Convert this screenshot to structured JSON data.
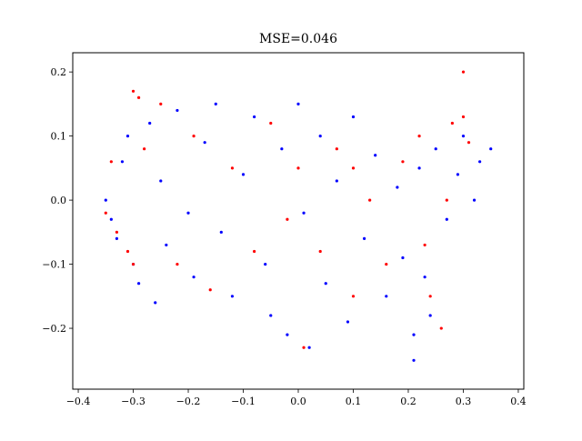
{
  "chart_data": {
    "type": "scatter",
    "title": "MSE=0.046",
    "xlabel": "",
    "ylabel": "",
    "xlim": [
      -0.41,
      0.41
    ],
    "ylim": [
      -0.295,
      0.23
    ],
    "xticks": [
      -0.4,
      -0.3,
      -0.2,
      -0.1,
      0.0,
      0.1,
      0.2,
      0.3,
      0.4
    ],
    "xtick_labels": [
      "−0.4",
      "−0.3",
      "−0.2",
      "−0.1",
      "0.0",
      "0.1",
      "0.2",
      "0.3",
      "0.4"
    ],
    "yticks": [
      -0.2,
      -0.1,
      0.0,
      0.1,
      0.2
    ],
    "ytick_labels": [
      "−0.2",
      "−0.1",
      "0.0",
      "0.1",
      "0.2"
    ],
    "grid": false,
    "legend": "none",
    "colors": {
      "base": "#0000ff",
      "highlight": "#ff0000"
    },
    "series": [
      {
        "color": "#0000ff",
        "points": [
          [
            -0.35,
            0.0
          ],
          [
            -0.34,
            -0.03
          ],
          [
            -0.33,
            -0.06
          ],
          [
            -0.32,
            0.06
          ],
          [
            -0.31,
            0.1
          ],
          [
            -0.3,
            -0.1
          ],
          [
            -0.29,
            -0.13
          ],
          [
            -0.27,
            0.12
          ],
          [
            -0.26,
            -0.16
          ],
          [
            -0.25,
            0.03
          ],
          [
            -0.24,
            -0.07
          ],
          [
            -0.22,
            0.14
          ],
          [
            -0.2,
            -0.02
          ],
          [
            -0.19,
            -0.12
          ],
          [
            -0.17,
            0.09
          ],
          [
            -0.15,
            0.15
          ],
          [
            -0.14,
            -0.05
          ],
          [
            -0.12,
            -0.15
          ],
          [
            -0.1,
            0.04
          ],
          [
            -0.08,
            0.13
          ],
          [
            -0.06,
            -0.1
          ],
          [
            -0.05,
            -0.18
          ],
          [
            -0.03,
            0.08
          ],
          [
            -0.02,
            -0.21
          ],
          [
            0.0,
            0.15
          ],
          [
            0.01,
            -0.02
          ],
          [
            0.02,
            -0.23
          ],
          [
            0.04,
            0.1
          ],
          [
            0.05,
            -0.13
          ],
          [
            0.07,
            0.03
          ],
          [
            0.09,
            -0.19
          ],
          [
            0.1,
            0.13
          ],
          [
            0.12,
            -0.06
          ],
          [
            0.14,
            0.07
          ],
          [
            0.16,
            -0.15
          ],
          [
            0.18,
            0.02
          ],
          [
            0.19,
            -0.09
          ],
          [
            0.21,
            -0.21
          ],
          [
            0.22,
            0.05
          ],
          [
            0.23,
            -0.12
          ],
          [
            0.25,
            0.08
          ],
          [
            0.27,
            -0.03
          ],
          [
            0.29,
            0.04
          ],
          [
            0.3,
            0.1
          ],
          [
            0.32,
            0.0
          ],
          [
            0.33,
            0.06
          ],
          [
            0.35,
            0.08
          ],
          [
            0.21,
            -0.25
          ],
          [
            0.24,
            -0.18
          ]
        ]
      },
      {
        "color": "#ff0000",
        "points": [
          [
            -0.35,
            -0.02
          ],
          [
            -0.34,
            0.06
          ],
          [
            -0.33,
            -0.05
          ],
          [
            -0.31,
            -0.08
          ],
          [
            -0.3,
            0.17
          ],
          [
            -0.29,
            0.16
          ],
          [
            -0.3,
            -0.1
          ],
          [
            -0.28,
            0.08
          ],
          [
            -0.25,
            0.15
          ],
          [
            -0.22,
            -0.1
          ],
          [
            -0.19,
            0.1
          ],
          [
            -0.16,
            -0.14
          ],
          [
            -0.12,
            0.05
          ],
          [
            -0.08,
            -0.08
          ],
          [
            -0.05,
            0.12
          ],
          [
            -0.02,
            -0.03
          ],
          [
            0.0,
            0.05
          ],
          [
            0.01,
            -0.23
          ],
          [
            0.04,
            -0.08
          ],
          [
            0.07,
            0.08
          ],
          [
            0.1,
            0.05
          ],
          [
            0.1,
            -0.15
          ],
          [
            0.13,
            0.0
          ],
          [
            0.16,
            -0.1
          ],
          [
            0.19,
            0.06
          ],
          [
            0.22,
            0.1
          ],
          [
            0.24,
            -0.15
          ],
          [
            0.26,
            -0.2
          ],
          [
            0.27,
            0.0
          ],
          [
            0.28,
            0.12
          ],
          [
            0.3,
            0.2
          ],
          [
            0.3,
            0.13
          ],
          [
            0.31,
            0.09
          ],
          [
            0.23,
            -0.07
          ]
        ]
      }
    ]
  }
}
